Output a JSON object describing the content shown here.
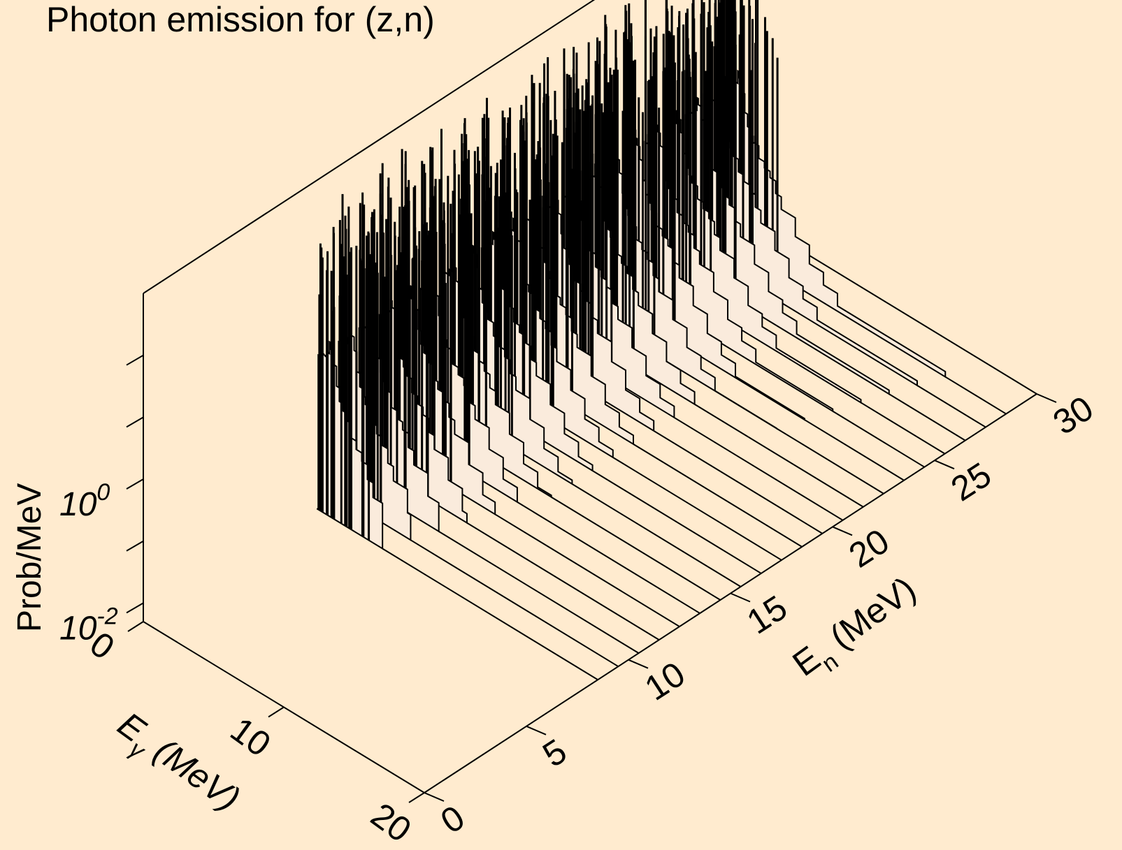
{
  "chart_data": {
    "type": "area",
    "title": "Photon emission for (z,n)",
    "zlabel": "Prob/MeV",
    "xlabel": {
      "main": "E",
      "sub": "γ",
      "unit": " (MeV)"
    },
    "ylabel": {
      "main": "E",
      "sub": "n",
      "unit": " (MeV)"
    },
    "z_scale": "log",
    "xlim": [
      0,
      20
    ],
    "ylim": [
      0,
      30
    ],
    "zlim_log10": [
      -2.3,
      3.0
    ],
    "x_ticks": [
      "0",
      "10",
      "20"
    ],
    "y_ticks": [
      "0",
      "5",
      "10",
      "15",
      "20",
      "25",
      "30"
    ],
    "z_ticks": [
      {
        "base": "10",
        "exp": "0"
      },
      {
        "base": "10",
        "exp": "-2"
      }
    ],
    "incident_energies": [
      8.5,
      9.5,
      10.5,
      11.5,
      12.5,
      13.5,
      14.5,
      15.5,
      16.5,
      17.5,
      18.5,
      19.5,
      20.5,
      21.5,
      22.5,
      23.5,
      24.5,
      25.5,
      26.5,
      27.5,
      28.5
    ],
    "spectrum_shape": {
      "x_bins": [
        0.1,
        0.2,
        0.3,
        0.4,
        0.5,
        0.6,
        0.7,
        0.8,
        0.9,
        1.0,
        1.2,
        1.4,
        1.6,
        1.8,
        2.0,
        2.4,
        2.8,
        3.2,
        3.6,
        4.0,
        5.0,
        6.0,
        7.0,
        8.0
      ],
      "log10_prob": [
        0.2,
        0.2,
        0.2,
        0.3,
        0.3,
        0.3,
        0.4,
        0.4,
        0.6,
        0.5,
        0.3,
        0.0,
        -0.2,
        -0.3,
        -0.4,
        -0.6,
        -0.7,
        -0.8,
        -1.0,
        -1.2,
        -1.5,
        -1.8,
        -2.0,
        -2.2
      ]
    },
    "line_spike_log10_max": 2.7,
    "grid": false,
    "legend": "none"
  }
}
